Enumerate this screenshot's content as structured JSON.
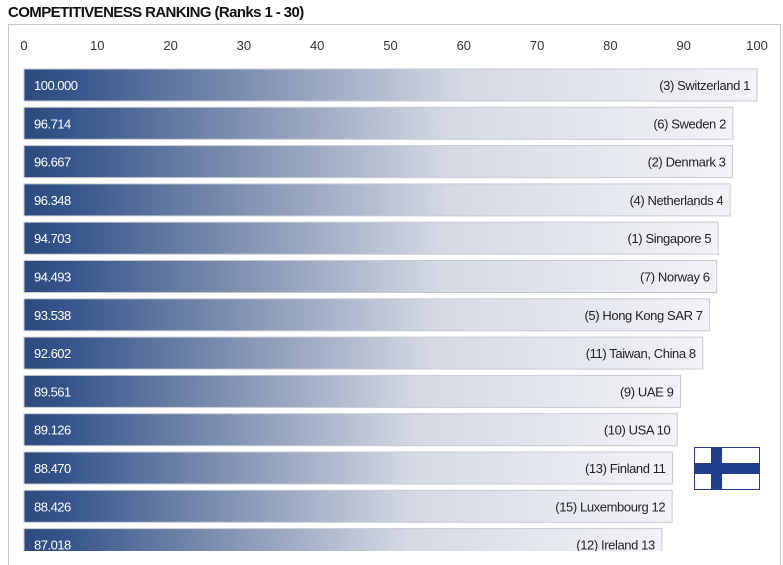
{
  "title": "COMPETITIVENESS RANKING (Ranks 1 - 30)",
  "colors": {
    "bar_dark": "#2c4a7c",
    "bar_light": "#f2f3f7",
    "flag_blue": "#1f3f8e"
  },
  "flag_icon": "finland-flag-icon",
  "chart_data": {
    "type": "bar",
    "orientation": "horizontal",
    "xlim": [
      0,
      100
    ],
    "ticks": [
      0,
      10,
      20,
      30,
      40,
      50,
      60,
      70,
      80,
      90,
      100
    ],
    "grid": false,
    "values": [
      100.0,
      96.714,
      96.667,
      96.348,
      94.703,
      94.493,
      93.538,
      92.602,
      89.561,
      89.126,
      88.47,
      88.426,
      87.018
    ],
    "value_labels": [
      "100.000",
      "96.714",
      "96.667",
      "96.348",
      "94.703",
      "94.493",
      "93.538",
      "92.602",
      "89.561",
      "89.126",
      "88.470",
      "88.426",
      "87.018"
    ],
    "categories": [
      "(3) Switzerland 1",
      "(6) Sweden 2",
      "(2) Denmark 3",
      "(4) Netherlands 4",
      "(1) Singapore 5",
      "(7) Norway 6",
      "(5) Hong Kong SAR 7",
      "(11) Taiwan, China 8",
      "(9) UAE 9",
      "(10) USA 10",
      "(13) Finland 11",
      "(15) Luxembourg 12",
      "(12) Ireland 13"
    ]
  }
}
